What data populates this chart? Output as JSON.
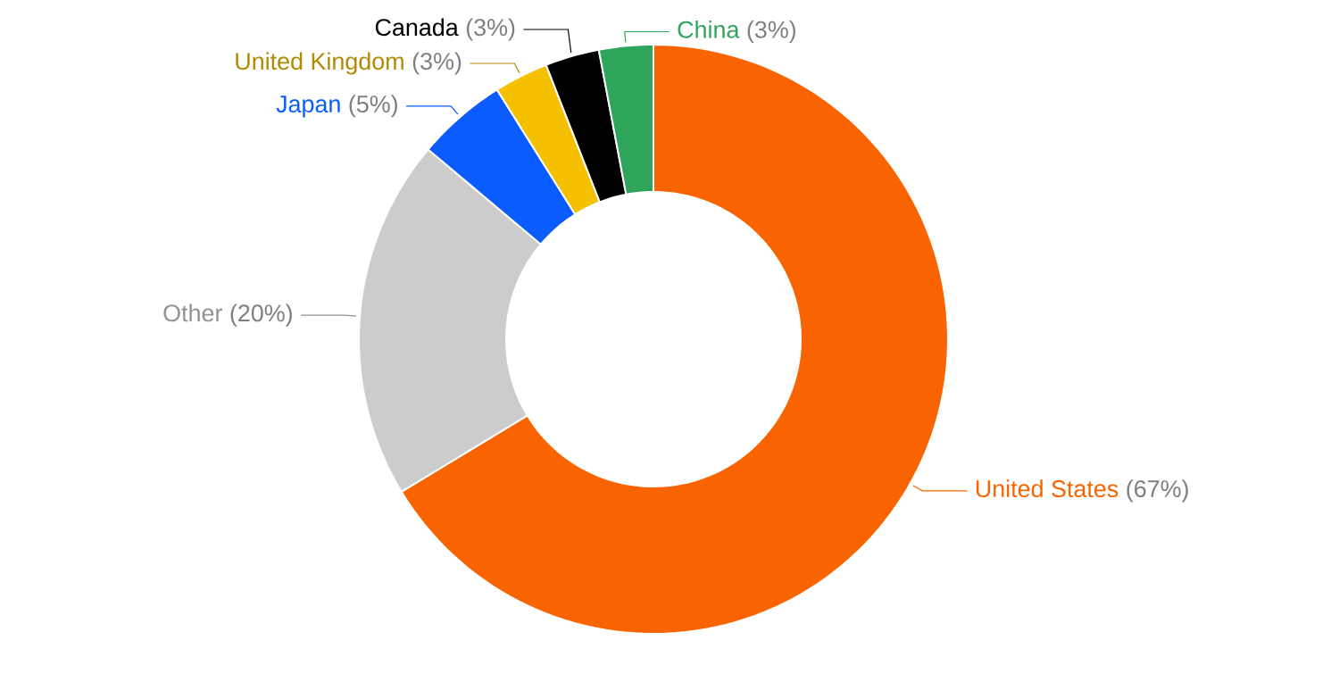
{
  "chart_data": {
    "type": "donut",
    "categories": [
      "United States",
      "Other",
      "Japan",
      "United Kingdom",
      "Canada",
      "China"
    ],
    "values": [
      67,
      20,
      5,
      3,
      3,
      3
    ],
    "colors": [
      "#fa6400",
      "#cccccc",
      "#0a5cff",
      "#f5c000",
      "#000000",
      "#2ea55a"
    ],
    "value_labels": [
      "(67%)",
      "(20%)",
      "(5%)",
      "(3%)",
      "(3%)",
      "(3%)"
    ]
  }
}
